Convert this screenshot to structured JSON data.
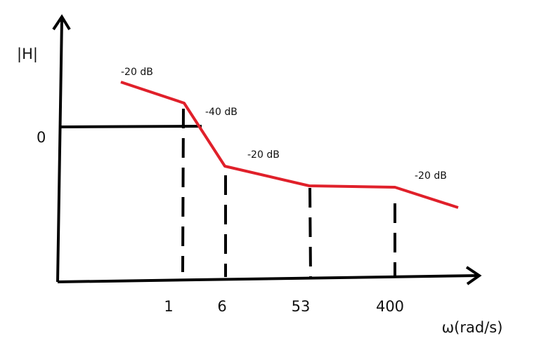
{
  "axes": {
    "y_label": "|H|",
    "x_label": "ω(rad/s)",
    "zero_label": "0"
  },
  "slopes": [
    "-20 dB",
    "-40 dB",
    "-20 dB",
    "-20 dB"
  ],
  "frequencies": [
    1,
    6,
    53,
    400
  ]
}
